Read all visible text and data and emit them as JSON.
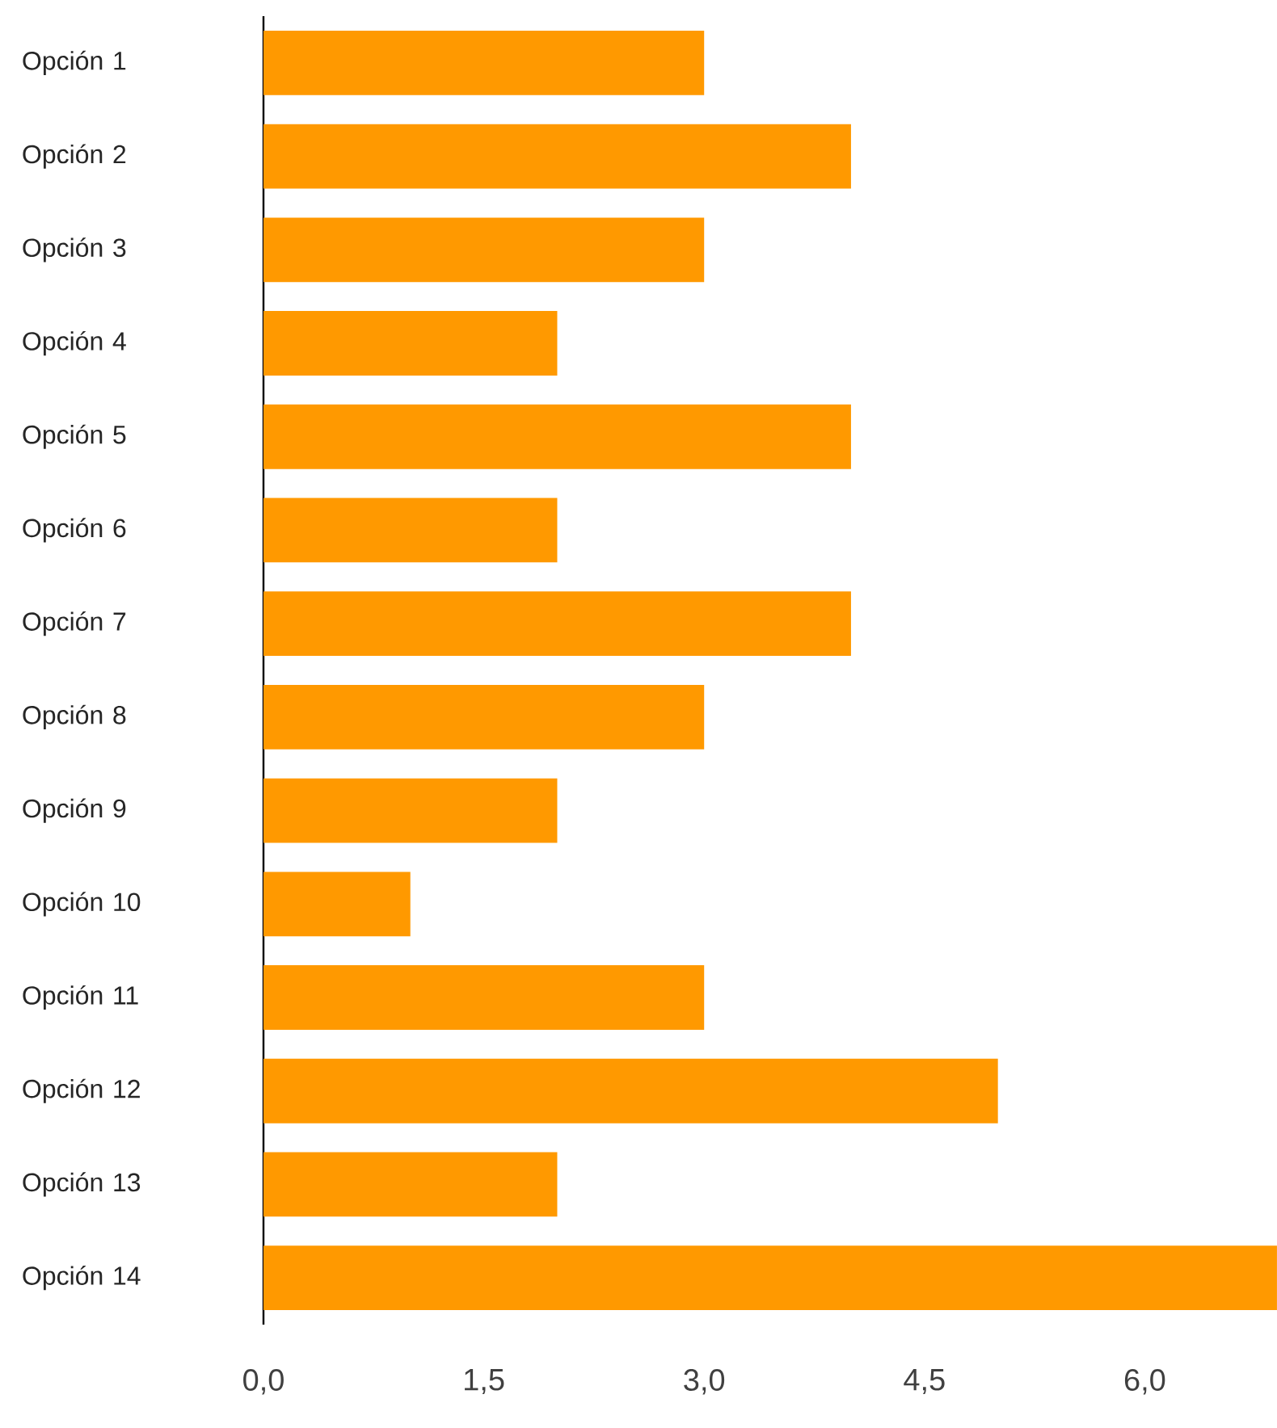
{
  "chart_data": {
    "type": "bar",
    "orientation": "horizontal",
    "categories": [
      "Opción 1",
      "Opción 2",
      "Opción 3",
      "Opción 4",
      "Opción 5",
      "Opción 6",
      "Opción 7",
      "Opción 8",
      "Opción 9",
      "Opción 10",
      "Opción 11",
      "Opción 12",
      "Opción 13",
      "Opción 14"
    ],
    "values": [
      3,
      4,
      3,
      2,
      4,
      2,
      4,
      3,
      2,
      1,
      3,
      5,
      2,
      6.9
    ],
    "color": "#ff9900",
    "xlim": [
      0,
      6.9
    ],
    "xticks": [
      {
        "value": 0,
        "label": "0,0"
      },
      {
        "value": 1.5,
        "label": "1,5"
      },
      {
        "value": 3,
        "label": "3,0"
      },
      {
        "value": 4.5,
        "label": "4,5"
      },
      {
        "value": 6,
        "label": "6,0"
      }
    ]
  }
}
